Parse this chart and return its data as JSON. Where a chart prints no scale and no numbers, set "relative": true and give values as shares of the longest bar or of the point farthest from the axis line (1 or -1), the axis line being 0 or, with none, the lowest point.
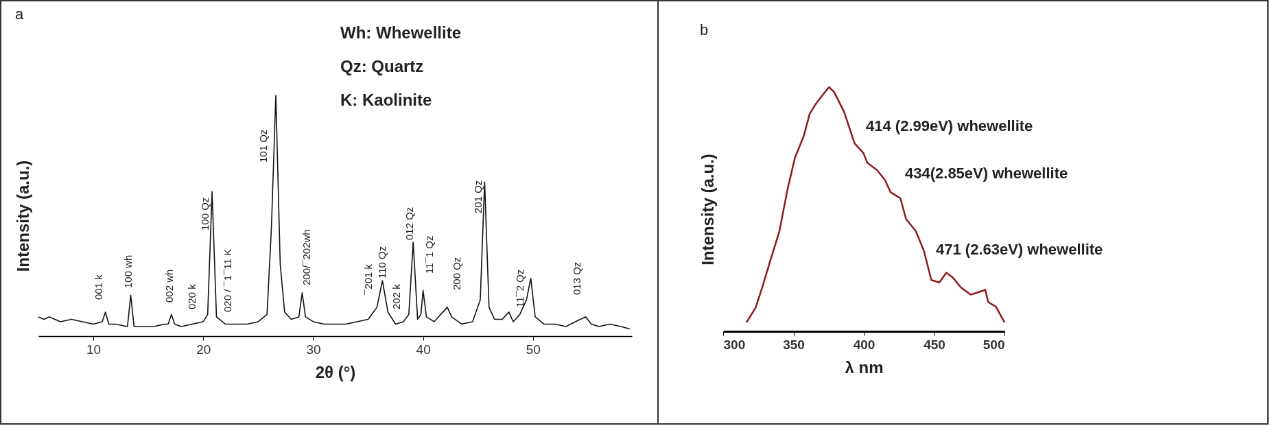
{
  "chart_data": [
    {
      "type": "line",
      "title": "a",
      "xlabel": "2θ (°)",
      "ylabel": "Intensity (a.u.)",
      "relative": true,
      "xlim": [
        5,
        59
      ],
      "xticks": [
        10,
        20,
        30,
        40,
        50
      ],
      "x": [
        5,
        5.5,
        6,
        7,
        8,
        9,
        10,
        10.8,
        11.1,
        11.4,
        12,
        13.1,
        13.4,
        13.7,
        14.5,
        15.5,
        16.5,
        16.8,
        17.1,
        17.4,
        18,
        19,
        20,
        20.4,
        20.8,
        21.2,
        22,
        23,
        24,
        25,
        25.8,
        26.2,
        26.6,
        27.0,
        27.4,
        28,
        28.7,
        29.0,
        29.3,
        30,
        31,
        32,
        33,
        34,
        35,
        35.8,
        36.3,
        36.8,
        37.5,
        38.2,
        38.7,
        39.1,
        39.5,
        39.8,
        40.0,
        40.3,
        41,
        41.8,
        42.2,
        42.6,
        43.5,
        44.5,
        45.2,
        45.6,
        46.0,
        46.5,
        47.2,
        47.8,
        48.2,
        48.8,
        49.4,
        49.8,
        50.2,
        51,
        52,
        53,
        54.3,
        54.8,
        55.3,
        56,
        57,
        58,
        58.8
      ],
      "series": [
        {
          "color": "#111111",
          "values": [
            0.08,
            0.07,
            0.08,
            0.06,
            0.07,
            0.06,
            0.05,
            0.06,
            0.1,
            0.05,
            0.05,
            0.04,
            0.17,
            0.04,
            0.04,
            0.04,
            0.05,
            0.05,
            0.09,
            0.05,
            0.04,
            0.05,
            0.06,
            0.09,
            0.6,
            0.08,
            0.05,
            0.05,
            0.05,
            0.06,
            0.09,
            0.45,
            1.0,
            0.3,
            0.1,
            0.07,
            0.08,
            0.18,
            0.08,
            0.06,
            0.05,
            0.05,
            0.05,
            0.06,
            0.07,
            0.12,
            0.23,
            0.1,
            0.05,
            0.06,
            0.09,
            0.39,
            0.07,
            0.09,
            0.19,
            0.08,
            0.06,
            0.1,
            0.12,
            0.08,
            0.05,
            0.06,
            0.15,
            0.64,
            0.12,
            0.07,
            0.07,
            0.1,
            0.06,
            0.09,
            0.15,
            0.24,
            0.08,
            0.05,
            0.05,
            0.04,
            0.07,
            0.08,
            0.05,
            0.04,
            0.05,
            0.04,
            0.03
          ]
        }
      ],
      "annotations": [
        "Wh: Whewellite",
        "Qz: Quartz",
        "K: Kaolinite",
        "001 k",
        "100 wh",
        "002 wh",
        "020 k",
        "100 Qz",
        "020 / ¯1¯11 K",
        "101 Qz",
        "200/¯202wh",
        "¯201 k",
        "110 Qz",
        "202 k",
        "012 Qz",
        "11¯1 Qz",
        "200 Qz",
        "201 Qz",
        "11¯2 Qz",
        "013 Qz"
      ]
    },
    {
      "type": "line",
      "title": "b",
      "xlabel": "λ nm",
      "ylabel": "Intensity (a.u.)",
      "relative": true,
      "xlim": [
        300,
        500
      ],
      "xticks": [
        300,
        350,
        400,
        450,
        500
      ],
      "x": [
        316.6,
        323,
        327.8,
        333,
        340,
        345.7,
        351,
        357.3,
        361.5,
        365.7,
        371,
        375.3,
        378.9,
        385.9,
        393.4,
        399.7,
        402.5,
        409.4,
        415,
        419,
        426,
        430,
        437,
        442.7,
        448,
        453.7,
        458.7,
        463.4,
        469,
        476,
        481.4,
        486.4,
        488.4,
        494,
        500
      ],
      "series": [
        {
          "color": "#8b1a1a",
          "values": [
            0.037,
            0.096,
            0.18,
            0.28,
            0.41,
            0.58,
            0.71,
            0.8,
            0.89,
            0.93,
            0.97,
            1.0,
            0.98,
            0.9,
            0.77,
            0.73,
            0.69,
            0.66,
            0.62,
            0.57,
            0.545,
            0.46,
            0.41,
            0.33,
            0.21,
            0.2,
            0.24,
            0.22,
            0.18,
            0.15,
            0.16,
            0.17,
            0.12,
            0.1,
            0.037
          ]
        }
      ],
      "annotations": [
        "414 (2.99eV) whewellite",
        "434(2.85eV) whewellite",
        "471 (2.63eV) whewellite"
      ]
    }
  ]
}
